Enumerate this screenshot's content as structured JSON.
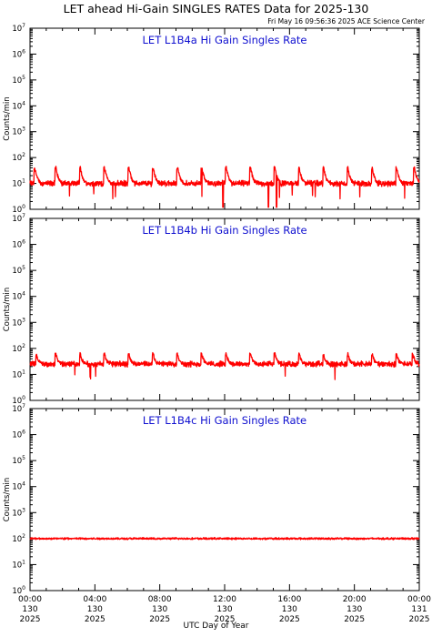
{
  "header": {
    "title": "LET ahead Hi-Gain SINGLES RATES Data for 2025-130",
    "timestamp": "Fri May 16 09:56:36 2025 ACE Science Center"
  },
  "x_axis_label": "UTC Day of Year",
  "colors": {
    "series": "#ff0000",
    "panel_title": "#1010d0",
    "axes": "#000000"
  },
  "chart_data": [
    {
      "type": "line",
      "title": "LET L1B4a Hi Gain Singles Rate",
      "ylabel": "Counts/min",
      "yscale": "log",
      "ylim": [
        1,
        10000000
      ],
      "xlim": [
        0,
        24
      ],
      "x_unit": "hours UTC, day 130 of 2025",
      "y_ticks": [
        {
          "base": "10",
          "exp": "0"
        },
        {
          "base": "10",
          "exp": "1"
        },
        {
          "base": "10",
          "exp": "2"
        },
        {
          "base": "10",
          "exp": "3"
        },
        {
          "base": "10",
          "exp": "4"
        },
        {
          "base": "10",
          "exp": "5"
        },
        {
          "base": "10",
          "exp": "6"
        },
        {
          "base": "10",
          "exp": "7"
        }
      ],
      "series": [
        {
          "baseline": 10,
          "peak_times": [
            0.3,
            1.6,
            3.1,
            4.6,
            6.1,
            7.6,
            9.1,
            10.6,
            12.1,
            13.6,
            15.1,
            16.6,
            18.1,
            19.6,
            21.1,
            22.6,
            23.7
          ],
          "peak_value": 40,
          "dip_times": [
            11.9,
            14.7,
            15.2
          ],
          "dip_value": 1.2
        }
      ]
    },
    {
      "type": "line",
      "title": "LET L1B4b Hi Gain Singles Rate",
      "ylabel": "Counts/min",
      "yscale": "log",
      "ylim": [
        1,
        10000000
      ],
      "xlim": [
        0,
        24
      ],
      "x_unit": "hours UTC, day 130 of 2025",
      "y_ticks": [
        {
          "base": "10",
          "exp": "0"
        },
        {
          "base": "10",
          "exp": "1"
        },
        {
          "base": "10",
          "exp": "2"
        },
        {
          "base": "10",
          "exp": "3"
        },
        {
          "base": "10",
          "exp": "4"
        },
        {
          "base": "10",
          "exp": "5"
        },
        {
          "base": "10",
          "exp": "6"
        },
        {
          "base": "10",
          "exp": "7"
        }
      ],
      "series": [
        {
          "baseline": 25,
          "peak_times": [
            0.4,
            1.6,
            3.1,
            4.6,
            6.1,
            7.6,
            9.1,
            10.6,
            12.1,
            13.6,
            15.1,
            16.6,
            18.1,
            19.6,
            21.1,
            22.6,
            23.6
          ],
          "peak_value": 60,
          "dip_times": [],
          "dip_value": 12
        }
      ]
    },
    {
      "type": "line",
      "title": "LET L1B4c Hi Gain Singles Rate",
      "ylabel": "Counts/min",
      "yscale": "log",
      "ylim": [
        1,
        10000000
      ],
      "xlim": [
        0,
        24
      ],
      "x_unit": "hours UTC, day 130 of 2025",
      "y_ticks": [
        {
          "base": "10",
          "exp": "0"
        },
        {
          "base": "10",
          "exp": "1"
        },
        {
          "base": "10",
          "exp": "2"
        },
        {
          "base": "10",
          "exp": "3"
        },
        {
          "base": "10",
          "exp": "4"
        },
        {
          "base": "10",
          "exp": "5"
        },
        {
          "base": "10",
          "exp": "6"
        },
        {
          "base": "10",
          "exp": "7"
        }
      ],
      "series": [
        {
          "baseline": 100,
          "peak_times": [],
          "peak_value": 130,
          "dip_times": [],
          "dip_value": 75
        }
      ],
      "x_ticks": [
        {
          "time": "00:00",
          "doy": "130",
          "year": "2025"
        },
        {
          "time": "04:00",
          "doy": "130",
          "year": "2025"
        },
        {
          "time": "08:00",
          "doy": "130",
          "year": "2025"
        },
        {
          "time": "12:00",
          "doy": "130",
          "year": "2025"
        },
        {
          "time": "16:00",
          "doy": "130",
          "year": "2025"
        },
        {
          "time": "20:00",
          "doy": "130",
          "year": "2025"
        },
        {
          "time": "00:00",
          "doy": "131",
          "year": "2025"
        }
      ]
    }
  ]
}
